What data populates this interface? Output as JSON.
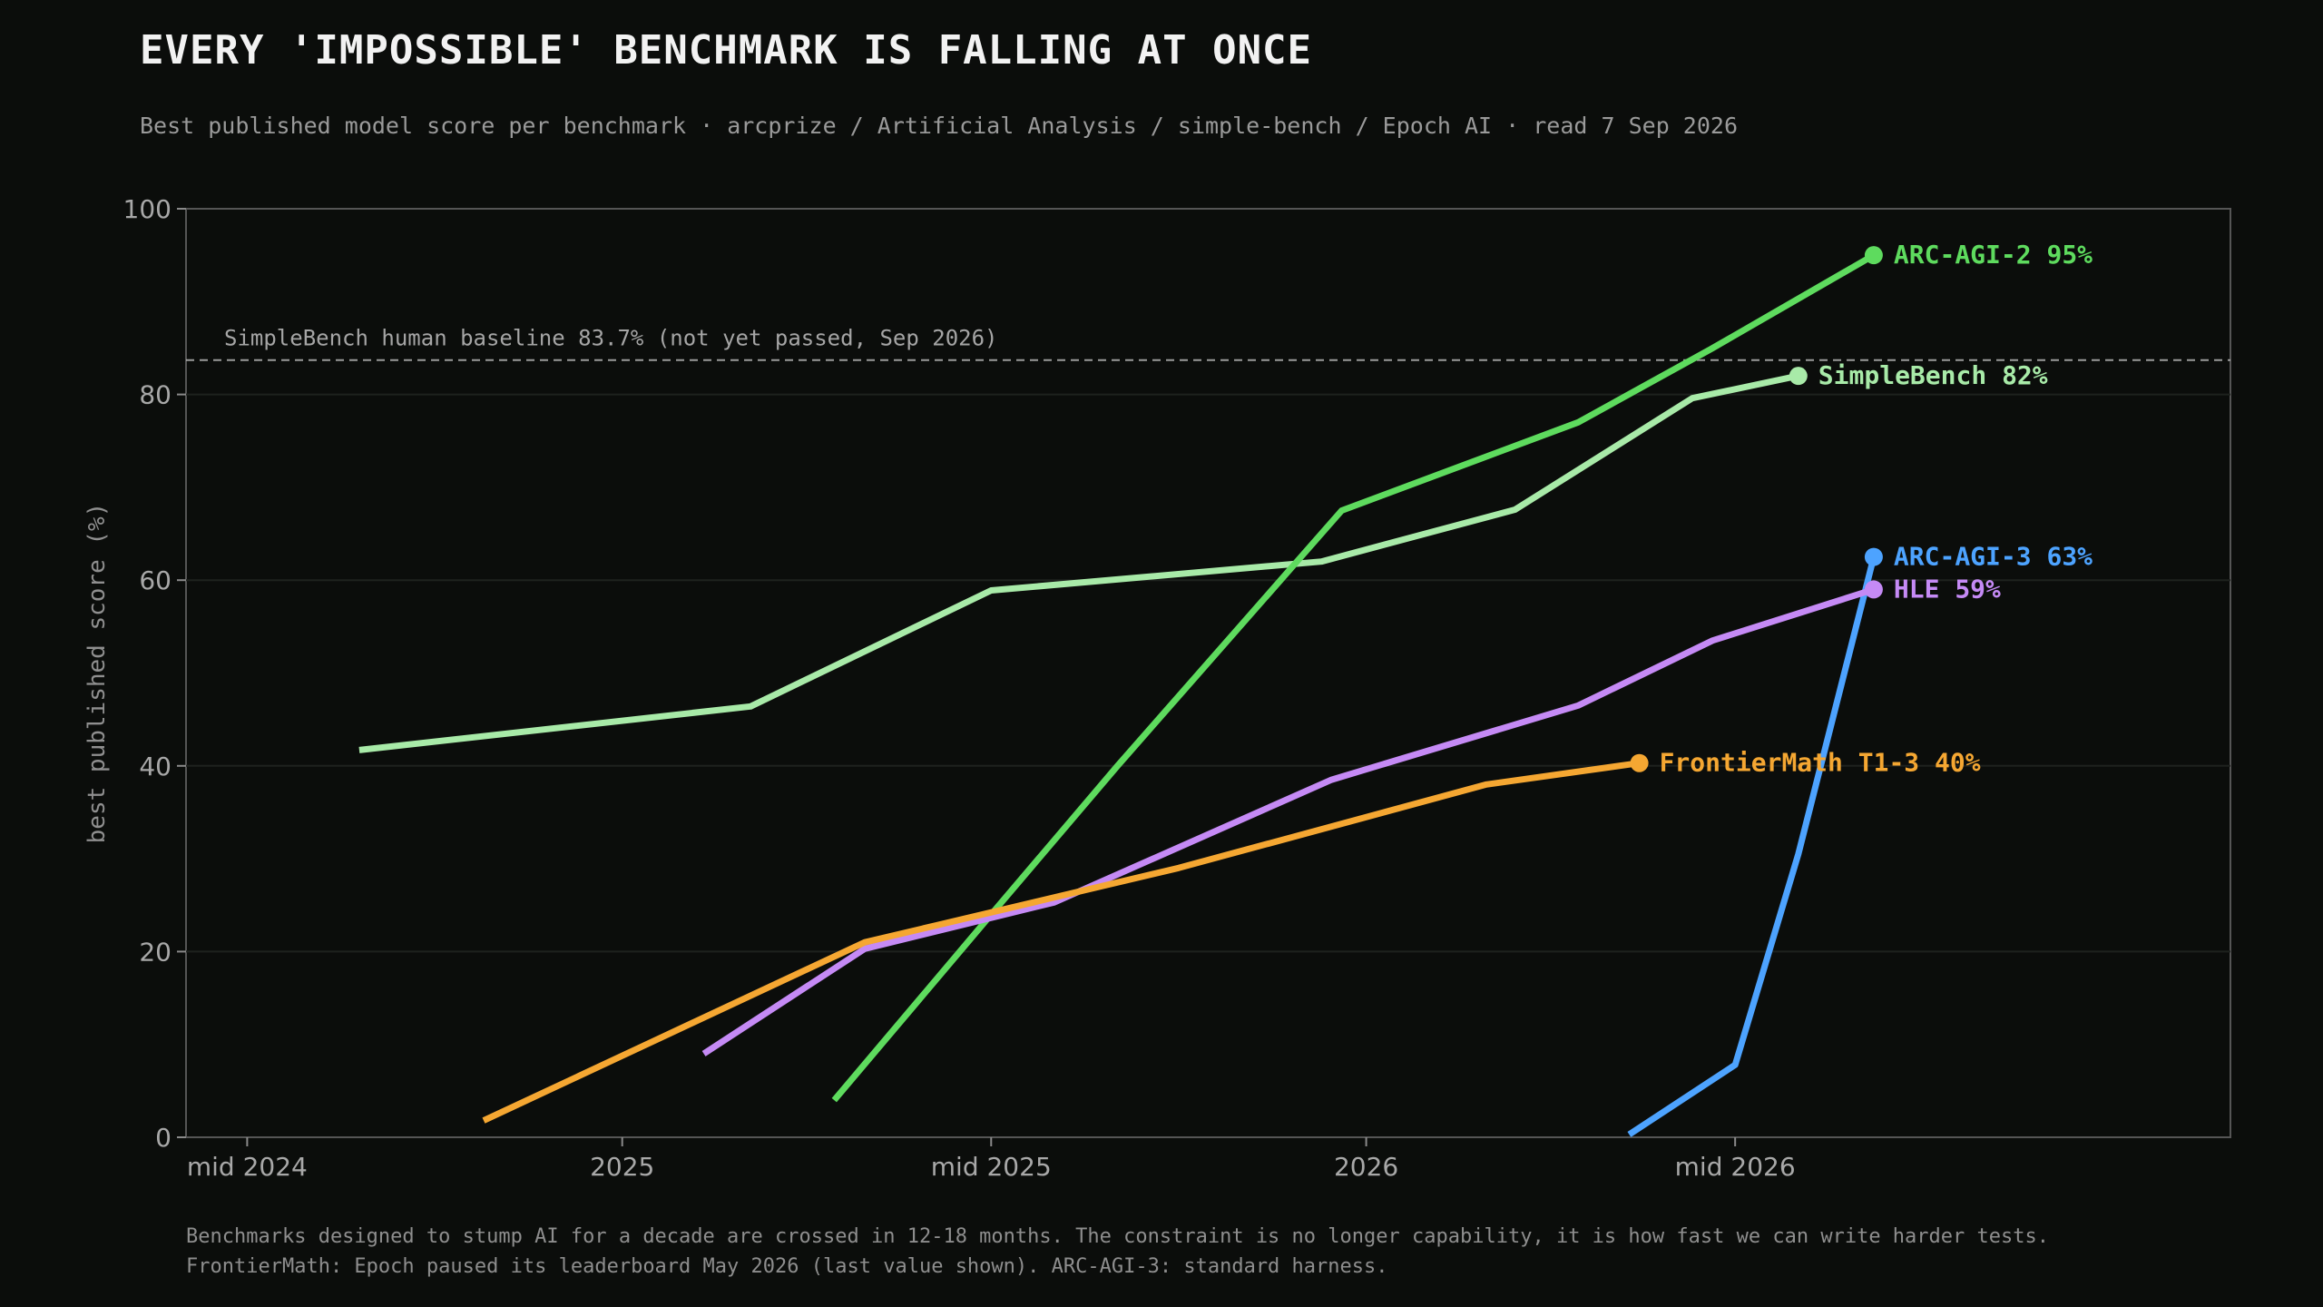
{
  "header": {
    "title": "EVERY 'IMPOSSIBLE' BENCHMARK IS FALLING AT ONCE",
    "subtitle": "Best published model score per benchmark  ·  arcprize / Artificial Analysis / simple-bench / Epoch AI  ·  read 7 Sep 2026"
  },
  "footer": {
    "line1": "Benchmarks designed to stump AI for a decade are crossed in 12-18 months.  The constraint is no longer capability, it is how fast we can write harder tests.",
    "line2": "FrontierMath: Epoch paused its leaderboard May 2026 (last value shown).  ARC-AGI-3: standard harness."
  },
  "chart_data": {
    "type": "line",
    "title": "EVERY 'IMPOSSIBLE' BENCHMARK IS FALLING AT ONCE",
    "xlabel": "",
    "ylabel": "best published score (%)",
    "x_ticks": [
      {
        "date": "2024-07-01",
        "label": "mid 2024"
      },
      {
        "date": "2025-01-01",
        "label": "2025"
      },
      {
        "date": "2025-07-01",
        "label": "mid 2025"
      },
      {
        "date": "2026-01-01",
        "label": "2026"
      },
      {
        "date": "2026-07-01",
        "label": "mid 2026"
      }
    ],
    "xlim": [
      "2024-06-01",
      "2027-03-01"
    ],
    "ylim": [
      0,
      100
    ],
    "y_ticks": [
      0,
      20,
      40,
      60,
      80,
      100
    ],
    "grid": true,
    "reference_line": {
      "value": 83.7,
      "label": "SimpleBench human baseline 83.7%  (not yet passed, Sep 2026)",
      "color": "#b5b5b5"
    },
    "series": [
      {
        "name": "SimpleBench",
        "end_label": "SimpleBench  82%",
        "color": "#a8eaa8",
        "points": [
          {
            "x": "2024-08-25",
            "y": 41.7
          },
          {
            "x": "2025-03-05",
            "y": 46.4
          },
          {
            "x": "2025-07-01",
            "y": 58.9
          },
          {
            "x": "2025-12-10",
            "y": 62.0
          },
          {
            "x": "2026-03-15",
            "y": 67.6
          },
          {
            "x": "2026-06-10",
            "y": 79.6
          },
          {
            "x": "2026-08-01",
            "y": 82.0
          }
        ]
      },
      {
        "name": "ARC-AGI-2",
        "end_label": "ARC-AGI-2  95%",
        "color": "#5edb5e",
        "points": [
          {
            "x": "2025-04-15",
            "y": 4.0
          },
          {
            "x": "2025-07-01",
            "y": 24.0
          },
          {
            "x": "2025-09-01",
            "y": 40.0
          },
          {
            "x": "2025-12-20",
            "y": 67.5
          },
          {
            "x": "2026-04-15",
            "y": 77.0
          },
          {
            "x": "2026-06-20",
            "y": 85.0
          },
          {
            "x": "2026-09-07",
            "y": 95.0
          }
        ]
      },
      {
        "name": "ARC-AGI-3",
        "end_label": "ARC-AGI-3  63%",
        "color": "#4da3ff",
        "points": [
          {
            "x": "2026-05-10",
            "y": 0.3
          },
          {
            "x": "2026-07-01",
            "y": 7.8
          },
          {
            "x": "2026-08-01",
            "y": 30.5
          },
          {
            "x": "2026-09-03",
            "y": 59.0
          },
          {
            "x": "2026-09-07",
            "y": 62.5
          }
        ]
      },
      {
        "name": "HLE",
        "end_label": "HLE  59%",
        "color": "#c58af5",
        "points": [
          {
            "x": "2025-02-10",
            "y": 9.0
          },
          {
            "x": "2025-04-30",
            "y": 20.3
          },
          {
            "x": "2025-08-01",
            "y": 25.3
          },
          {
            "x": "2025-12-15",
            "y": 38.5
          },
          {
            "x": "2026-04-15",
            "y": 46.5
          },
          {
            "x": "2026-06-20",
            "y": 53.5
          },
          {
            "x": "2026-09-07",
            "y": 59.0
          }
        ]
      },
      {
        "name": "FrontierMath T1-3",
        "end_label": "FrontierMath T1-3  40%",
        "color": "#f5a732",
        "points": [
          {
            "x": "2024-10-25",
            "y": 1.8
          },
          {
            "x": "2025-04-30",
            "y": 21.0
          },
          {
            "x": "2025-10-01",
            "y": 29.0
          },
          {
            "x": "2026-03-01",
            "y": 38.0
          },
          {
            "x": "2026-05-15",
            "y": 40.3
          }
        ]
      }
    ]
  },
  "colors": {
    "background": "#0b0d0b",
    "plot_border": "#555555",
    "grid": "#1e221e"
  }
}
